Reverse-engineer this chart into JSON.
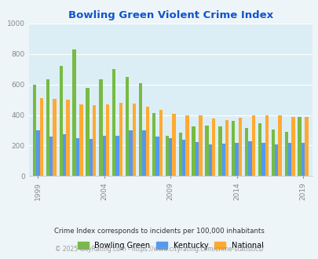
{
  "title": "Bowling Green Violent Crime Index",
  "years": [
    1999,
    2000,
    2001,
    2002,
    2003,
    2004,
    2005,
    2006,
    2007,
    2008,
    2009,
    2010,
    2011,
    2012,
    2013,
    2014,
    2015,
    2016,
    2017,
    2018,
    2019
  ],
  "bowling_green": [
    600,
    635,
    720,
    830,
    575,
    635,
    700,
    650,
    610,
    415,
    265,
    285,
    325,
    330,
    325,
    360,
    315,
    345,
    305,
    290,
    385
  ],
  "kentucky": [
    300,
    260,
    275,
    250,
    245,
    265,
    265,
    300,
    300,
    260,
    250,
    240,
    225,
    205,
    215,
    220,
    230,
    220,
    210,
    220,
    220
  ],
  "national": [
    510,
    505,
    500,
    470,
    465,
    470,
    480,
    475,
    455,
    435,
    410,
    395,
    395,
    375,
    365,
    380,
    400,
    395,
    400,
    385,
    385
  ],
  "bar_colors": {
    "bowling_green": "#77bb44",
    "kentucky": "#5599ee",
    "national": "#ffaa33"
  },
  "bg_color": "#eef5f8",
  "plot_bg_color": "#dceef5",
  "ylim": [
    0,
    1000
  ],
  "yticks": [
    0,
    200,
    400,
    600,
    800,
    1000
  ],
  "xlabel_ticks": [
    1999,
    2004,
    2009,
    2014,
    2019
  ],
  "footnote1": "Crime Index corresponds to incidents per 100,000 inhabitants",
  "footnote2": "© 2025 CityRating.com - https://www.cityrating.com/crime-statistics/",
  "legend_labels": [
    "Bowling Green",
    "Kentucky",
    "National"
  ],
  "title_color": "#1155cc"
}
